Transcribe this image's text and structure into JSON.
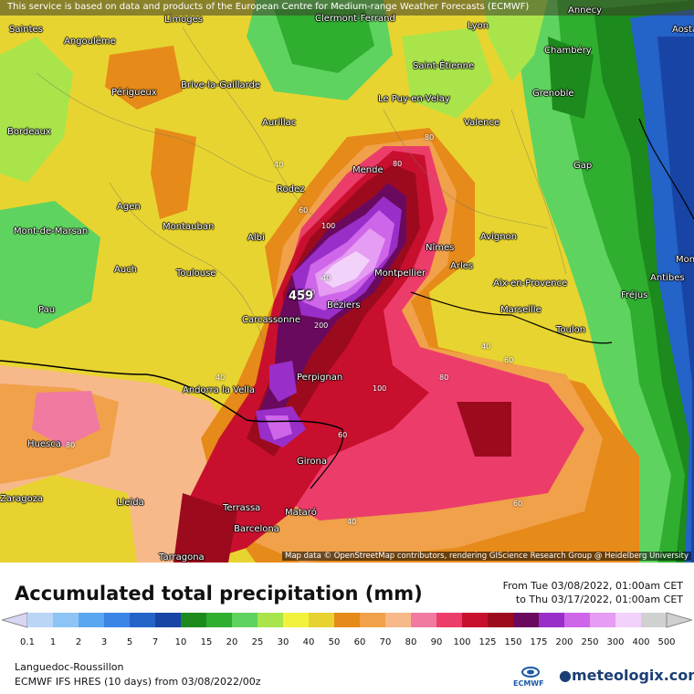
{
  "attribution": "This service is based on data and products of the European Centre for Medium-range Weather Forecasts (ECMWF)",
  "map_credit": "Map data © OpenStreetMap contributors, rendering GIScience Research Group @ Heidelberg University",
  "title": "Accumulated total precipitation (mm)",
  "period_from": "From Tue 03/08/2022, 01:00am CET",
  "period_to": "to Thu 03/17/2022, 01:00am CET",
  "region": "Languedoc-Roussillon",
  "model_run": "ECMWF IFS HRES (10 days) from 03/08/2022/00z",
  "brand": "meteologix.com",
  "ecmwf_label": "ECMWF",
  "max_value": "459",
  "legend": {
    "unit": "mm",
    "ticks": [
      "0.1",
      "1",
      "2",
      "3",
      "5",
      "7",
      "10",
      "15",
      "20",
      "25",
      "30",
      "40",
      "50",
      "60",
      "70",
      "80",
      "90",
      "100",
      "125",
      "150",
      "175",
      "200",
      "250",
      "300",
      "400",
      "500"
    ],
    "colors": [
      "#d7d7f5",
      "#b9d6f7",
      "#8ec3f5",
      "#5aa6f0",
      "#3a85e6",
      "#2463c8",
      "#1845a5",
      "#1c8a1c",
      "#2fae2f",
      "#5fd35f",
      "#a9e54a",
      "#f2f23c",
      "#e7d230",
      "#e68a19",
      "#f0a14a",
      "#f7b98a",
      "#f07aa0",
      "#ec3d6a",
      "#c8102e",
      "#9c0a1e",
      "#6a0a5e",
      "#9a2ec8",
      "#cf66ea",
      "#e59cf2",
      "#f2d2fa",
      "#d0d0d0"
    ]
  },
  "cities": [
    {
      "name": "Saintes"
    },
    {
      "name": "Angoulême"
    },
    {
      "name": "Limoges"
    },
    {
      "name": "Clermont-Ferrand"
    },
    {
      "name": "Lyon"
    },
    {
      "name": "Annecy"
    },
    {
      "name": "Chambéry"
    },
    {
      "name": "Saint-Étienne"
    },
    {
      "name": "Périgueux"
    },
    {
      "name": "Brive-la-Gaillarde"
    },
    {
      "name": "Grenoble"
    },
    {
      "name": "Bordeaux"
    },
    {
      "name": "Aurillac"
    },
    {
      "name": "Le Puy-en-Velay"
    },
    {
      "name": "Valence"
    },
    {
      "name": "Mende"
    },
    {
      "name": "Gap"
    },
    {
      "name": "Rodez"
    },
    {
      "name": "Agen"
    },
    {
      "name": "Montauban"
    },
    {
      "name": "Albi"
    },
    {
      "name": "Nîmes"
    },
    {
      "name": "Avignon"
    },
    {
      "name": "Mont-de-Marsan"
    },
    {
      "name": "Arles"
    },
    {
      "name": "Montpellier"
    },
    {
      "name": "Auch"
    },
    {
      "name": "Toulouse"
    },
    {
      "name": "Aix-en-Provence"
    },
    {
      "name": "Antibes"
    },
    {
      "name": "Fréjus"
    },
    {
      "name": "Pau"
    },
    {
      "name": "Béziers"
    },
    {
      "name": "Marseille"
    },
    {
      "name": "Carcassonne"
    },
    {
      "name": "Toulon"
    },
    {
      "name": "Perpignan"
    },
    {
      "name": "Andorra la Vella"
    },
    {
      "name": "Huesca"
    },
    {
      "name": "Girona"
    },
    {
      "name": "Lleida"
    },
    {
      "name": "Terrassa"
    },
    {
      "name": "Mataró"
    },
    {
      "name": "Barcelona"
    },
    {
      "name": "Tarragona"
    },
    {
      "name": "Aosta"
    },
    {
      "name": "Monaco"
    },
    {
      "name": "Zaragoza"
    }
  ],
  "isolines": [
    "40",
    "80",
    "60",
    "100",
    "80",
    "40",
    "60",
    "40",
    "80",
    "100",
    "40",
    "60",
    "80",
    "40",
    "100",
    "200",
    "60"
  ]
}
